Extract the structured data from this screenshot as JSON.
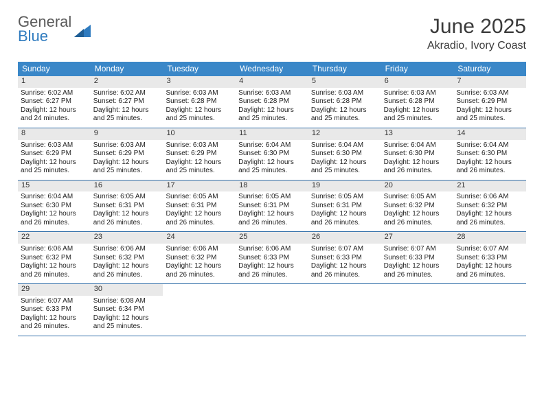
{
  "logo": {
    "line1": "General",
    "line2": "Blue"
  },
  "title": "June 2025",
  "location": "Akradio, Ivory Coast",
  "colors": {
    "header_bg": "#3a87c8",
    "header_text": "#ffffff",
    "daynum_bg": "#e9e9e9",
    "rule": "#2f6da8",
    "logo_gray": "#5a5a5a",
    "logo_blue": "#2f7bbf"
  },
  "fonts": {
    "title_size": 30,
    "location_size": 16,
    "dow_size": 12,
    "body_size": 10
  },
  "dow": [
    "Sunday",
    "Monday",
    "Tuesday",
    "Wednesday",
    "Thursday",
    "Friday",
    "Saturday"
  ],
  "weeks": [
    [
      {
        "n": "1",
        "sr": "Sunrise: 6:02 AM",
        "ss": "Sunset: 6:27 PM",
        "d1": "Daylight: 12 hours",
        "d2": "and 24 minutes."
      },
      {
        "n": "2",
        "sr": "Sunrise: 6:02 AM",
        "ss": "Sunset: 6:27 PM",
        "d1": "Daylight: 12 hours",
        "d2": "and 25 minutes."
      },
      {
        "n": "3",
        "sr": "Sunrise: 6:03 AM",
        "ss": "Sunset: 6:28 PM",
        "d1": "Daylight: 12 hours",
        "d2": "and 25 minutes."
      },
      {
        "n": "4",
        "sr": "Sunrise: 6:03 AM",
        "ss": "Sunset: 6:28 PM",
        "d1": "Daylight: 12 hours",
        "d2": "and 25 minutes."
      },
      {
        "n": "5",
        "sr": "Sunrise: 6:03 AM",
        "ss": "Sunset: 6:28 PM",
        "d1": "Daylight: 12 hours",
        "d2": "and 25 minutes."
      },
      {
        "n": "6",
        "sr": "Sunrise: 6:03 AM",
        "ss": "Sunset: 6:28 PM",
        "d1": "Daylight: 12 hours",
        "d2": "and 25 minutes."
      },
      {
        "n": "7",
        "sr": "Sunrise: 6:03 AM",
        "ss": "Sunset: 6:29 PM",
        "d1": "Daylight: 12 hours",
        "d2": "and 25 minutes."
      }
    ],
    [
      {
        "n": "8",
        "sr": "Sunrise: 6:03 AM",
        "ss": "Sunset: 6:29 PM",
        "d1": "Daylight: 12 hours",
        "d2": "and 25 minutes."
      },
      {
        "n": "9",
        "sr": "Sunrise: 6:03 AM",
        "ss": "Sunset: 6:29 PM",
        "d1": "Daylight: 12 hours",
        "d2": "and 25 minutes."
      },
      {
        "n": "10",
        "sr": "Sunrise: 6:03 AM",
        "ss": "Sunset: 6:29 PM",
        "d1": "Daylight: 12 hours",
        "d2": "and 25 minutes."
      },
      {
        "n": "11",
        "sr": "Sunrise: 6:04 AM",
        "ss": "Sunset: 6:30 PM",
        "d1": "Daylight: 12 hours",
        "d2": "and 25 minutes."
      },
      {
        "n": "12",
        "sr": "Sunrise: 6:04 AM",
        "ss": "Sunset: 6:30 PM",
        "d1": "Daylight: 12 hours",
        "d2": "and 25 minutes."
      },
      {
        "n": "13",
        "sr": "Sunrise: 6:04 AM",
        "ss": "Sunset: 6:30 PM",
        "d1": "Daylight: 12 hours",
        "d2": "and 26 minutes."
      },
      {
        "n": "14",
        "sr": "Sunrise: 6:04 AM",
        "ss": "Sunset: 6:30 PM",
        "d1": "Daylight: 12 hours",
        "d2": "and 26 minutes."
      }
    ],
    [
      {
        "n": "15",
        "sr": "Sunrise: 6:04 AM",
        "ss": "Sunset: 6:30 PM",
        "d1": "Daylight: 12 hours",
        "d2": "and 26 minutes."
      },
      {
        "n": "16",
        "sr": "Sunrise: 6:05 AM",
        "ss": "Sunset: 6:31 PM",
        "d1": "Daylight: 12 hours",
        "d2": "and 26 minutes."
      },
      {
        "n": "17",
        "sr": "Sunrise: 6:05 AM",
        "ss": "Sunset: 6:31 PM",
        "d1": "Daylight: 12 hours",
        "d2": "and 26 minutes."
      },
      {
        "n": "18",
        "sr": "Sunrise: 6:05 AM",
        "ss": "Sunset: 6:31 PM",
        "d1": "Daylight: 12 hours",
        "d2": "and 26 minutes."
      },
      {
        "n": "19",
        "sr": "Sunrise: 6:05 AM",
        "ss": "Sunset: 6:31 PM",
        "d1": "Daylight: 12 hours",
        "d2": "and 26 minutes."
      },
      {
        "n": "20",
        "sr": "Sunrise: 6:05 AM",
        "ss": "Sunset: 6:32 PM",
        "d1": "Daylight: 12 hours",
        "d2": "and 26 minutes."
      },
      {
        "n": "21",
        "sr": "Sunrise: 6:06 AM",
        "ss": "Sunset: 6:32 PM",
        "d1": "Daylight: 12 hours",
        "d2": "and 26 minutes."
      }
    ],
    [
      {
        "n": "22",
        "sr": "Sunrise: 6:06 AM",
        "ss": "Sunset: 6:32 PM",
        "d1": "Daylight: 12 hours",
        "d2": "and 26 minutes."
      },
      {
        "n": "23",
        "sr": "Sunrise: 6:06 AM",
        "ss": "Sunset: 6:32 PM",
        "d1": "Daylight: 12 hours",
        "d2": "and 26 minutes."
      },
      {
        "n": "24",
        "sr": "Sunrise: 6:06 AM",
        "ss": "Sunset: 6:32 PM",
        "d1": "Daylight: 12 hours",
        "d2": "and 26 minutes."
      },
      {
        "n": "25",
        "sr": "Sunrise: 6:06 AM",
        "ss": "Sunset: 6:33 PM",
        "d1": "Daylight: 12 hours",
        "d2": "and 26 minutes."
      },
      {
        "n": "26",
        "sr": "Sunrise: 6:07 AM",
        "ss": "Sunset: 6:33 PM",
        "d1": "Daylight: 12 hours",
        "d2": "and 26 minutes."
      },
      {
        "n": "27",
        "sr": "Sunrise: 6:07 AM",
        "ss": "Sunset: 6:33 PM",
        "d1": "Daylight: 12 hours",
        "d2": "and 26 minutes."
      },
      {
        "n": "28",
        "sr": "Sunrise: 6:07 AM",
        "ss": "Sunset: 6:33 PM",
        "d1": "Daylight: 12 hours",
        "d2": "and 26 minutes."
      }
    ],
    [
      {
        "n": "29",
        "sr": "Sunrise: 6:07 AM",
        "ss": "Sunset: 6:33 PM",
        "d1": "Daylight: 12 hours",
        "d2": "and 26 minutes."
      },
      {
        "n": "30",
        "sr": "Sunrise: 6:08 AM",
        "ss": "Sunset: 6:34 PM",
        "d1": "Daylight: 12 hours",
        "d2": "and 25 minutes."
      },
      null,
      null,
      null,
      null,
      null
    ]
  ]
}
